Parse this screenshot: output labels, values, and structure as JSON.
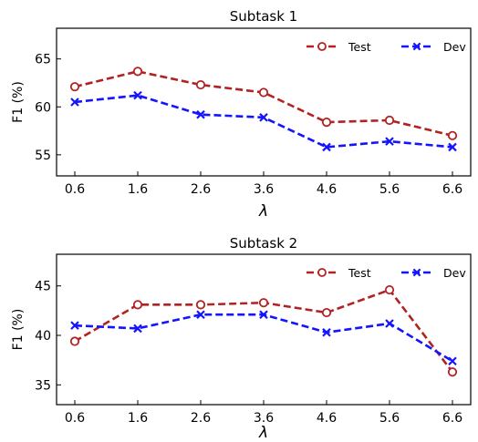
{
  "chart_data": [
    {
      "type": "line",
      "title": "Subtask 1",
      "xlabel": "λ",
      "ylabel": "F1 (%)",
      "categories": [
        "0.6",
        "1.6",
        "2.6",
        "3.6",
        "4.6",
        "5.6",
        "6.6"
      ],
      "yticks": [
        "55",
        "60",
        "65"
      ],
      "ylim": [
        52.8,
        68.2
      ],
      "grid": false,
      "legend_position": "top-right",
      "series": [
        {
          "name": "Test",
          "color": "#b22222",
          "marker": "circle",
          "values": [
            62.1,
            63.7,
            62.3,
            61.5,
            58.4,
            58.6,
            57.0
          ]
        },
        {
          "name": "Dev",
          "color": "#1414ff",
          "marker": "x",
          "values": [
            60.5,
            61.2,
            59.2,
            58.9,
            55.8,
            56.4,
            55.8
          ]
        }
      ]
    },
    {
      "type": "line",
      "title": "Subtask 2",
      "xlabel": "λ",
      "ylabel": "F1 (%)",
      "categories": [
        "0.6",
        "1.6",
        "2.6",
        "3.6",
        "4.6",
        "5.6",
        "6.6"
      ],
      "yticks": [
        "35",
        "40",
        "45"
      ],
      "ylim": [
        33.0,
        48.2
      ],
      "grid": false,
      "legend_position": "top-right",
      "series": [
        {
          "name": "Test",
          "color": "#b22222",
          "marker": "circle",
          "values": [
            39.4,
            43.1,
            43.1,
            43.3,
            42.3,
            44.6,
            36.3
          ]
        },
        {
          "name": "Dev",
          "color": "#1414ff",
          "marker": "x",
          "values": [
            41.0,
            40.7,
            42.1,
            42.1,
            40.3,
            41.2,
            37.4
          ]
        }
      ]
    }
  ]
}
